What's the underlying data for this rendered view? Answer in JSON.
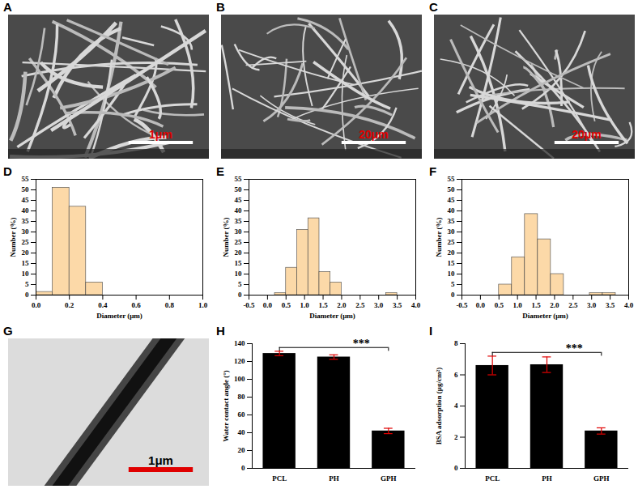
{
  "chart_data": [
    {
      "panel": "A",
      "type": "image",
      "scale_bar": "1μm"
    },
    {
      "panel": "B",
      "type": "image",
      "scale_bar": "20μm"
    },
    {
      "panel": "C",
      "type": "image",
      "scale_bar": "20μm"
    },
    {
      "panel": "D",
      "type": "histogram",
      "xlabel": "Diameter (μm)",
      "ylabel": "Number (%)",
      "bins": [
        0,
        0.1,
        0.2,
        0.3,
        0.4
      ],
      "values": [
        1.5,
        51,
        42,
        6
      ],
      "color": "#fcd9a8",
      "xlim": [
        0,
        1
      ],
      "xticks": [
        {
          "value": 0,
          "label": "0.0"
        },
        0.2,
        0.4,
        0.6,
        0.8,
        {
          "value": 1,
          "label": "1.0"
        }
      ],
      "ylim": [
        0,
        55
      ],
      "yticks": [
        0,
        5,
        10,
        15,
        20,
        25,
        30,
        35,
        40,
        45,
        50,
        55
      ]
    },
    {
      "panel": "E",
      "type": "histogram",
      "xlabel": "Diameter (μm)",
      "ylabel": "Number (%)",
      "bins": [
        0.2,
        0.5,
        0.8,
        1.1,
        1.4,
        1.7,
        2.0,
        2.3,
        2.6,
        2.9,
        3.2,
        3.5
      ],
      "values": [
        1,
        13,
        31,
        36.5,
        11,
        6,
        0,
        0,
        0,
        0,
        1
      ],
      "color": "#fcd9a8",
      "xlim": [
        -0.5,
        4
      ],
      "xticks": [
        -0.5,
        {
          "value": 0,
          "label": "0.0"
        },
        0.5,
        {
          "value": 1,
          "label": "1.0"
        },
        1.5,
        {
          "value": 2,
          "label": "2.0"
        },
        2.5,
        {
          "value": 3,
          "label": "3.0"
        },
        3.5,
        {
          "value": 4,
          "label": "4.0"
        }
      ],
      "ylim": [
        0,
        55
      ],
      "yticks": [
        0,
        5,
        10,
        15,
        20,
        25,
        30,
        35,
        40,
        45,
        50,
        55
      ]
    },
    {
      "panel": "F",
      "type": "histogram",
      "xlabel": "Diameter (μm)",
      "ylabel": "Number (%)",
      "bins": [
        0.5,
        0.85,
        1.2,
        1.55,
        1.9,
        2.25,
        2.6,
        2.95,
        3.3,
        3.65
      ],
      "values": [
        5,
        18,
        38.5,
        26.5,
        10,
        0,
        0,
        1,
        1
      ],
      "color": "#fcd9a8",
      "xlim": [
        -0.5,
        4
      ],
      "xticks": [
        -0.5,
        {
          "value": 0,
          "label": "0.0"
        },
        0.5,
        {
          "value": 1,
          "label": "1.0"
        },
        1.5,
        {
          "value": 2,
          "label": "2.0"
        },
        2.5,
        {
          "value": 3,
          "label": "3.0"
        },
        3.5,
        {
          "value": 4,
          "label": "4.0"
        }
      ],
      "ylim": [
        0,
        55
      ],
      "yticks": [
        0,
        5,
        10,
        15,
        20,
        25,
        30,
        35,
        40,
        45,
        50,
        55
      ]
    },
    {
      "panel": "G",
      "type": "image",
      "scale_bar": "1μm"
    },
    {
      "panel": "H",
      "type": "bar",
      "ylabel": "Water contact angle (°)",
      "categories": [
        "PCL",
        "PH",
        "GPH"
      ],
      "values": [
        129,
        125,
        42
      ],
      "errors": [
        2.5,
        2.5,
        3
      ],
      "color": "#000000",
      "ylim": [
        0,
        140
      ],
      "yticks": [
        0,
        20,
        40,
        60,
        80,
        100,
        120,
        140
      ],
      "annotations": [
        "***"
      ]
    },
    {
      "panel": "I",
      "type": "bar",
      "ylabel": "BSA adsorption (μg/cm²)",
      "categories": [
        "PCL",
        "PH",
        "GPH"
      ],
      "values": [
        6.6,
        6.65,
        2.4
      ],
      "errors": [
        0.6,
        0.5,
        0.2
      ],
      "color": "#000000",
      "ylim": [
        0,
        8
      ],
      "yticks": [
        0,
        2,
        4,
        6,
        8
      ],
      "annotations": [
        "***"
      ]
    }
  ]
}
